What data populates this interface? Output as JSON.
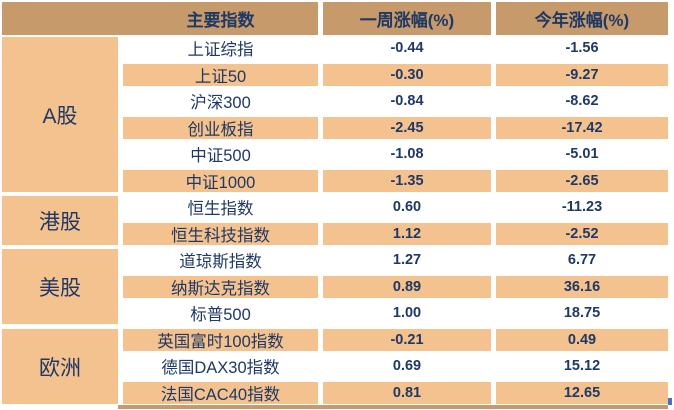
{
  "table": {
    "header": {
      "main": "主要指数",
      "week": "一周涨幅(%)",
      "year": "今年涨幅(%)"
    },
    "groups": [
      {
        "label": "A股"
      },
      {
        "label": "港股"
      },
      {
        "label": "美股"
      },
      {
        "label": "欧洲"
      }
    ],
    "rows": [
      {
        "name": "上证综指",
        "week": "-0.44",
        "year": "-1.56"
      },
      {
        "name": "上证50",
        "week": "-0.30",
        "year": "-9.27"
      },
      {
        "name": "沪深300",
        "week": "-0.84",
        "year": "-8.62"
      },
      {
        "name": "创业板指",
        "week": "-2.45",
        "year": "-17.42"
      },
      {
        "name": "中证500",
        "week": "-1.08",
        "year": "-5.01"
      },
      {
        "name": "中证1000",
        "week": "-1.35",
        "year": "-2.65"
      },
      {
        "name": "恒生指数",
        "week": "0.60",
        "year": "-11.23"
      },
      {
        "name": "恒生科技指数",
        "week": "1.12",
        "year": "-2.52"
      },
      {
        "name": "道琼斯指数",
        "week": "1.27",
        "year": "6.77"
      },
      {
        "name": "纳斯达克指数",
        "week": "0.89",
        "year": "36.16"
      },
      {
        "name": "标普500",
        "week": "1.00",
        "year": "18.75"
      },
      {
        "name": "英国富时100指数",
        "week": "-0.21",
        "year": "0.49"
      },
      {
        "name": "德国DAX30指数",
        "week": "0.69",
        "year": "15.12"
      },
      {
        "name": "法国CAC40指数",
        "week": "0.81",
        "year": "12.65"
      }
    ]
  },
  "colors": {
    "header_bg": "#C79A6B",
    "stripe_bg": "#F4C28E",
    "text_navy": "#1F3864",
    "tick_blue": "#4472C4",
    "page_bg": "#FFFFFF"
  },
  "chart_data": {
    "type": "table",
    "columns": [
      "主要指数",
      "一周涨幅(%)",
      "今年涨幅(%)"
    ],
    "row_groups": [
      {
        "group": "A股",
        "rows": [
          [
            "上证综指",
            -0.44,
            -1.56
          ],
          [
            "上证50",
            -0.3,
            -9.27
          ],
          [
            "沪深300",
            -0.84,
            -8.62
          ],
          [
            "创业板指",
            -2.45,
            -17.42
          ],
          [
            "中证500",
            -1.08,
            -5.01
          ],
          [
            "中证1000",
            -1.35,
            -2.65
          ]
        ]
      },
      {
        "group": "港股",
        "rows": [
          [
            "恒生指数",
            0.6,
            -11.23
          ],
          [
            "恒生科技指数",
            1.12,
            -2.52
          ]
        ]
      },
      {
        "group": "美股",
        "rows": [
          [
            "道琼斯指数",
            1.27,
            6.77
          ],
          [
            "纳斯达克指数",
            0.89,
            36.16
          ],
          [
            "标普500",
            1.0,
            18.75
          ]
        ]
      },
      {
        "group": "欧洲",
        "rows": [
          [
            "英国富时100指数",
            -0.21,
            0.49
          ],
          [
            "德国DAX30指数",
            0.69,
            15.12
          ],
          [
            "法国CAC40指数",
            0.81,
            12.65
          ]
        ]
      }
    ],
    "layout": {
      "striped": true,
      "grouped_first_column": true,
      "legend": "none",
      "grid": "off"
    }
  }
}
